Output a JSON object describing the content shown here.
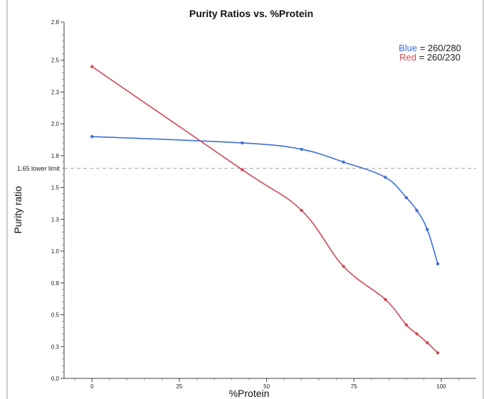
{
  "chart_data": {
    "type": "line",
    "title": "Purity Ratios vs. %Protein",
    "xlabel": "%Protein",
    "ylabel": "Purity ratio",
    "xlim": [
      -8,
      110
    ],
    "ylim": [
      0.0,
      2.8
    ],
    "x_ticks": [
      0,
      25,
      50,
      75,
      100
    ],
    "x_tick_labels": [
      "0",
      "25",
      "50",
      "75",
      "100"
    ],
    "y_ticks": [
      0.0,
      0.25,
      0.5,
      0.75,
      1.0,
      1.25,
      1.5,
      1.75,
      2.0,
      2.25,
      2.5,
      2.8
    ],
    "y_tick_labels": [
      "0.0",
      "0.3",
      "0.5",
      "0.8",
      "1.0",
      "1.3",
      "1.5",
      "1.8",
      "2.0",
      "2.3",
      "2.5",
      "2.8"
    ],
    "reference_line": {
      "y": 1.65,
      "label": "1.65 lower limit"
    },
    "series": [
      {
        "color": "#3f6fd8",
        "x": [
          0,
          43,
          60,
          72,
          84,
          90,
          93,
          96,
          99
        ],
        "y": [
          1.9,
          1.85,
          1.8,
          1.7,
          1.58,
          1.42,
          1.32,
          1.17,
          0.9
        ]
      },
      {
        "color": "#cf4a56",
        "x": [
          0,
          43,
          60,
          72,
          84,
          90,
          93,
          96,
          99
        ],
        "y": [
          2.45,
          1.64,
          1.32,
          0.88,
          0.62,
          0.42,
          0.35,
          0.28,
          0.2
        ]
      }
    ],
    "legend": {
      "position": "top-right",
      "items": [
        {
          "name": "Blue",
          "suffix": " = 260/280",
          "color": "#3f6fd8"
        },
        {
          "name": "Red",
          "suffix": " = 260/230",
          "color": "#cf4a56"
        }
      ]
    }
  }
}
